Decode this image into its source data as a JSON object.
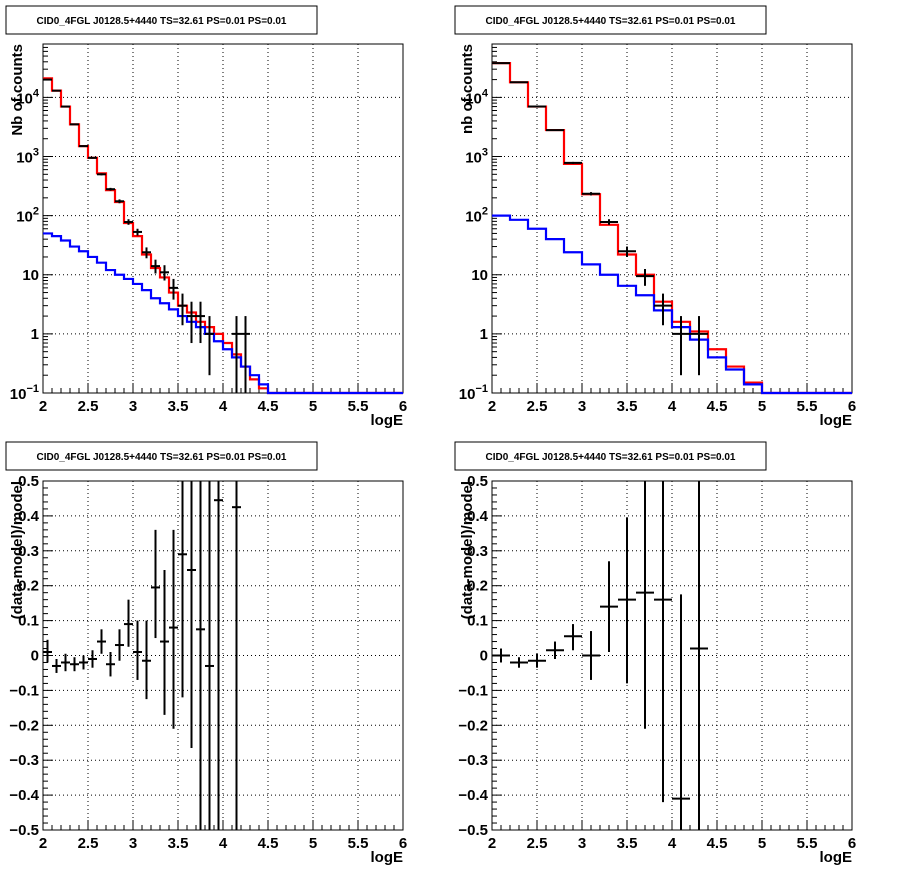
{
  "chart_data": [
    {
      "type": "line",
      "title": "CID0_4FGL J0128.5+4440 TS=32.61 PS=0.01 PS=0.01",
      "xlabel": "logE",
      "ylabel": "Nb of counts",
      "xlim": [
        2,
        6
      ],
      "ylim": [
        0.1,
        80000
      ],
      "yscale": "log",
      "grid": true,
      "xticks": [
        "2",
        "2.5",
        "3",
        "3.5",
        "4",
        "4.5",
        "5",
        "5.5",
        "6"
      ],
      "yticks": [
        {
          "v": 0.1,
          "base": "10",
          "exp": "−1"
        },
        {
          "v": 1,
          "text": "1"
        },
        {
          "v": 10,
          "text": "10"
        },
        {
          "v": 100,
          "base": "10",
          "exp": "2"
        },
        {
          "v": 1000,
          "base": "10",
          "exp": "3"
        },
        {
          "v": 10000,
          "base": "10",
          "exp": "4"
        }
      ],
      "bin_edges": [
        2.0,
        2.1,
        2.2,
        2.3,
        2.4,
        2.5,
        2.6,
        2.7,
        2.8,
        2.9,
        3.0,
        3.1,
        3.2,
        3.3,
        3.4,
        3.5,
        3.6,
        3.7,
        3.8,
        3.9,
        4.0,
        4.1,
        4.2,
        4.3,
        4.4,
        4.5,
        4.6,
        4.7,
        4.8,
        4.9,
        5.0,
        5.1,
        5.2,
        5.3,
        5.4,
        5.5,
        5.6,
        5.7,
        5.8,
        5.9,
        6.0
      ],
      "series": [
        {
          "color": "#ff0000",
          "values": [
            21000,
            13000,
            7000,
            3500,
            1500,
            950,
            520,
            270,
            170,
            75,
            45,
            22,
            13,
            9,
            5,
            3,
            2.3,
            1.6,
            1.3,
            1,
            0.7,
            0.45,
            0.28,
            0.17,
            0.12,
            0.1,
            0.1,
            0.1,
            0.1,
            0.1,
            0.1,
            0.1,
            0.1,
            0.1,
            0.1,
            0.1,
            0.1,
            0.1,
            0.1,
            0.1
          ]
        },
        {
          "color": "#0000ff",
          "values": [
            50,
            45,
            38,
            30,
            25,
            20,
            16,
            12,
            10,
            8.5,
            7,
            5.5,
            4,
            3.3,
            2.6,
            2,
            1.6,
            1.3,
            1,
            0.75,
            0.55,
            0.4,
            0.28,
            0.2,
            0.14,
            0.1,
            0.1,
            0.1,
            0.1,
            0.1,
            0.1,
            0.1,
            0.1,
            0.1,
            0.1,
            0.1,
            0.1,
            0.1,
            0.1,
            0.1
          ]
        }
      ],
      "data_points": [
        {
          "x": 2.05,
          "xerr": 0.05,
          "y": 20000,
          "lo": 19800,
          "hi": 20200
        },
        {
          "x": 2.15,
          "xerr": 0.05,
          "y": 13000,
          "lo": 12850,
          "hi": 13150
        },
        {
          "x": 2.25,
          "xerr": 0.05,
          "y": 7000,
          "lo": 6900,
          "hi": 7100
        },
        {
          "x": 2.35,
          "xerr": 0.05,
          "y": 3500,
          "lo": 3440,
          "hi": 3560
        },
        {
          "x": 2.45,
          "xerr": 0.05,
          "y": 1500,
          "lo": 1460,
          "hi": 1540
        },
        {
          "x": 2.55,
          "xerr": 0.05,
          "y": 950,
          "lo": 920,
          "hi": 980
        },
        {
          "x": 2.65,
          "xerr": 0.05,
          "y": 500,
          "lo": 480,
          "hi": 520
        },
        {
          "x": 2.75,
          "xerr": 0.05,
          "y": 280,
          "lo": 265,
          "hi": 295
        },
        {
          "x": 2.85,
          "xerr": 0.05,
          "y": 175,
          "lo": 162,
          "hi": 188
        },
        {
          "x": 2.95,
          "xerr": 0.05,
          "y": 78,
          "lo": 70,
          "hi": 87
        },
        {
          "x": 3.05,
          "xerr": 0.05,
          "y": 53,
          "lo": 46,
          "hi": 60
        },
        {
          "x": 3.15,
          "xerr": 0.05,
          "y": 24,
          "lo": 19,
          "hi": 29
        },
        {
          "x": 3.25,
          "xerr": 0.05,
          "y": 14,
          "lo": 10.5,
          "hi": 18
        },
        {
          "x": 3.35,
          "xerr": 0.05,
          "y": 11,
          "lo": 8,
          "hi": 14.5
        },
        {
          "x": 3.45,
          "xerr": 0.05,
          "y": 6,
          "lo": 3.8,
          "hi": 8.5
        },
        {
          "x": 3.55,
          "xerr": 0.05,
          "y": 3,
          "lo": 1.4,
          "hi": 4.8
        },
        {
          "x": 3.65,
          "xerr": 0.05,
          "y": 2,
          "lo": 0.7,
          "hi": 3.5
        },
        {
          "x": 3.75,
          "xerr": 0.05,
          "y": 2,
          "lo": 0.7,
          "hi": 3.5
        },
        {
          "x": 3.85,
          "xerr": 0.05,
          "y": 1,
          "lo": 0.2,
          "hi": 2
        },
        {
          "x": 4.15,
          "xerr": 0.05,
          "y": 1,
          "lo": 0.1,
          "hi": 2
        },
        {
          "x": 4.25,
          "xerr": 0.05,
          "y": 1,
          "lo": 0.1,
          "hi": 2
        }
      ]
    },
    {
      "type": "line",
      "title": "CID0_4FGL J0128.5+4440 TS=32.61 PS=0.01 PS=0.01",
      "xlabel": "logE",
      "ylabel": "nb of counts",
      "xlim": [
        2,
        6
      ],
      "ylim": [
        0.1,
        80000
      ],
      "yscale": "log",
      "grid": true,
      "xticks": [
        "2",
        "2.5",
        "3",
        "3.5",
        "4",
        "4.5",
        "5",
        "5.5",
        "6"
      ],
      "yticks": [
        {
          "v": 0.1,
          "base": "10",
          "exp": "−1"
        },
        {
          "v": 1,
          "text": "1"
        },
        {
          "v": 10,
          "text": "10"
        },
        {
          "v": 100,
          "base": "10",
          "exp": "2"
        },
        {
          "v": 1000,
          "base": "10",
          "exp": "3"
        },
        {
          "v": 10000,
          "base": "10",
          "exp": "4"
        }
      ],
      "bin_edges": [
        2.0,
        2.2,
        2.4,
        2.6,
        2.8,
        3.0,
        3.2,
        3.4,
        3.6,
        3.8,
        4.0,
        4.2,
        4.4,
        4.6,
        4.8,
        5.0,
        5.2,
        5.4,
        5.6,
        5.8,
        6.0
      ],
      "series": [
        {
          "color": "#ff0000",
          "values": [
            38000,
            18000,
            7000,
            2800,
            750,
            230,
            70,
            22,
            10,
            3.5,
            1.6,
            1.1,
            0.55,
            0.28,
            0.15,
            0.1,
            0.1,
            0.1,
            0.1,
            0.1
          ]
        },
        {
          "color": "#0000ff",
          "values": [
            100,
            85,
            60,
            40,
            24,
            15,
            10,
            6.5,
            4.5,
            2.5,
            1.3,
            0.8,
            0.4,
            0.25,
            0.14,
            0.1,
            0.1,
            0.1,
            0.1,
            0.1
          ]
        }
      ],
      "data_points": [
        {
          "x": 2.1,
          "xerr": 0.1,
          "y": 38000,
          "lo": 37700,
          "hi": 38300
        },
        {
          "x": 2.3,
          "xerr": 0.1,
          "y": 18000,
          "lo": 17800,
          "hi": 18200
        },
        {
          "x": 2.5,
          "xerr": 0.1,
          "y": 7000,
          "lo": 6900,
          "hi": 7100
        },
        {
          "x": 2.7,
          "xerr": 0.1,
          "y": 2800,
          "lo": 2740,
          "hi": 2860
        },
        {
          "x": 2.9,
          "xerr": 0.1,
          "y": 780,
          "lo": 750,
          "hi": 810
        },
        {
          "x": 3.1,
          "xerr": 0.1,
          "y": 235,
          "lo": 220,
          "hi": 250
        },
        {
          "x": 3.3,
          "xerr": 0.1,
          "y": 78,
          "lo": 70,
          "hi": 87
        },
        {
          "x": 3.5,
          "xerr": 0.1,
          "y": 25,
          "lo": 20,
          "hi": 30
        },
        {
          "x": 3.7,
          "xerr": 0.1,
          "y": 9.5,
          "lo": 6.5,
          "hi": 12.5
        },
        {
          "x": 3.9,
          "xerr": 0.1,
          "y": 3,
          "lo": 1.4,
          "hi": 4.8
        },
        {
          "x": 4.1,
          "xerr": 0.1,
          "y": 1,
          "lo": 0.2,
          "hi": 2
        },
        {
          "x": 4.3,
          "xerr": 0.1,
          "y": 1,
          "lo": 0.2,
          "hi": 2
        }
      ]
    },
    {
      "type": "scatter",
      "title": "CID0_4FGL J0128.5+4440 TS=32.61 PS=0.01 PS=0.01",
      "xlabel": "logE",
      "ylabel": "(data-model)/model",
      "xlim": [
        2,
        6
      ],
      "ylim": [
        -0.5,
        0.5
      ],
      "yscale": "linear",
      "grid": true,
      "xticks": [
        "2",
        "2.5",
        "3",
        "3.5",
        "4",
        "4.5",
        "5",
        "5.5",
        "6"
      ],
      "yticks": [
        {
          "v": -0.5,
          "text": "−0.5"
        },
        {
          "v": -0.4,
          "text": "−0.4"
        },
        {
          "v": -0.3,
          "text": "−0.3"
        },
        {
          "v": -0.2,
          "text": "−0.2"
        },
        {
          "v": -0.1,
          "text": "−0.1"
        },
        {
          "v": 0,
          "text": "0"
        },
        {
          "v": 0.1,
          "text": "0.1"
        },
        {
          "v": 0.2,
          "text": "0.2"
        },
        {
          "v": 0.3,
          "text": "0.3"
        },
        {
          "v": 0.4,
          "text": "0.4"
        },
        {
          "v": 0.5,
          "text": "0.5"
        }
      ],
      "data_points": [
        {
          "x": 2.05,
          "xerr": 0.05,
          "y": 0.01,
          "lo": -0.02,
          "hi": 0.045
        },
        {
          "x": 2.15,
          "xerr": 0.05,
          "y": -0.03,
          "lo": -0.05,
          "hi": -0.01
        },
        {
          "x": 2.25,
          "xerr": 0.05,
          "y": -0.02,
          "lo": -0.045,
          "hi": 0.005
        },
        {
          "x": 2.35,
          "xerr": 0.05,
          "y": -0.025,
          "lo": -0.045,
          "hi": -0.005
        },
        {
          "x": 2.45,
          "xerr": 0.05,
          "y": -0.02,
          "lo": -0.04,
          "hi": 0.0
        },
        {
          "x": 2.55,
          "xerr": 0.05,
          "y": -0.01,
          "lo": -0.035,
          "hi": 0.015
        },
        {
          "x": 2.65,
          "xerr": 0.05,
          "y": 0.04,
          "lo": 0.005,
          "hi": 0.075
        },
        {
          "x": 2.75,
          "xerr": 0.05,
          "y": -0.025,
          "lo": -0.06,
          "hi": 0.01
        },
        {
          "x": 2.85,
          "xerr": 0.05,
          "y": 0.03,
          "lo": -0.015,
          "hi": 0.075
        },
        {
          "x": 2.95,
          "xerr": 0.05,
          "y": 0.09,
          "lo": 0.025,
          "hi": 0.16
        },
        {
          "x": 3.05,
          "xerr": 0.05,
          "y": 0.01,
          "lo": -0.07,
          "hi": 0.1
        },
        {
          "x": 3.15,
          "xerr": 0.05,
          "y": -0.015,
          "lo": -0.125,
          "hi": 0.1
        },
        {
          "x": 3.25,
          "xerr": 0.05,
          "y": 0.195,
          "lo": 0.05,
          "hi": 0.36
        },
        {
          "x": 3.35,
          "xerr": 0.05,
          "y": 0.04,
          "lo": -0.17,
          "hi": 0.245
        },
        {
          "x": 3.45,
          "xerr": 0.05,
          "y": 0.08,
          "lo": -0.21,
          "hi": 0.36
        },
        {
          "x": 3.55,
          "xerr": 0.05,
          "y": 0.29,
          "lo": -0.12,
          "hi": 0.5
        },
        {
          "x": 3.65,
          "xerr": 0.05,
          "y": 0.245,
          "lo": -0.265,
          "hi": 0.5
        },
        {
          "x": 3.75,
          "xerr": 0.05,
          "y": 0.075,
          "lo": -0.5,
          "hi": 0.5
        },
        {
          "x": 3.85,
          "xerr": 0.05,
          "y": -0.03,
          "lo": -0.5,
          "hi": 0.5
        },
        {
          "x": 3.95,
          "xerr": 0.05,
          "y": 0.445,
          "lo": -0.5,
          "hi": 0.5
        },
        {
          "x": 4.15,
          "xerr": 0.05,
          "y": 0.425,
          "lo": -0.5,
          "hi": 0.5
        }
      ]
    },
    {
      "type": "scatter",
      "title": "CID0_4FGL J0128.5+4440 TS=32.61 PS=0.01 PS=0.01",
      "xlabel": "logE",
      "ylabel": "(data-model)/model",
      "xlim": [
        2,
        6
      ],
      "ylim": [
        -0.5,
        0.5
      ],
      "yscale": "linear",
      "grid": true,
      "xticks": [
        "2",
        "2.5",
        "3",
        "3.5",
        "4",
        "4.5",
        "5",
        "5.5",
        "6"
      ],
      "yticks": [
        {
          "v": -0.5,
          "text": "−0.5"
        },
        {
          "v": -0.4,
          "text": "−0.4"
        },
        {
          "v": -0.3,
          "text": "−0.3"
        },
        {
          "v": -0.2,
          "text": "−0.2"
        },
        {
          "v": -0.1,
          "text": "−0.1"
        },
        {
          "v": 0,
          "text": "0"
        },
        {
          "v": 0.1,
          "text": "0.1"
        },
        {
          "v": 0.2,
          "text": "0.2"
        },
        {
          "v": 0.3,
          "text": "0.3"
        },
        {
          "v": 0.4,
          "text": "0.4"
        },
        {
          "v": 0.5,
          "text": "0.5"
        }
      ],
      "data_points": [
        {
          "x": 2.1,
          "xerr": 0.1,
          "y": 0.0,
          "lo": -0.02,
          "hi": 0.02
        },
        {
          "x": 2.3,
          "xerr": 0.1,
          "y": -0.02,
          "lo": -0.035,
          "hi": -0.005
        },
        {
          "x": 2.5,
          "xerr": 0.1,
          "y": -0.015,
          "lo": -0.035,
          "hi": 0.005
        },
        {
          "x": 2.7,
          "xerr": 0.1,
          "y": 0.015,
          "lo": -0.01,
          "hi": 0.04
        },
        {
          "x": 2.9,
          "xerr": 0.1,
          "y": 0.055,
          "lo": 0.015,
          "hi": 0.09
        },
        {
          "x": 3.1,
          "xerr": 0.1,
          "y": 0.0,
          "lo": -0.07,
          "hi": 0.07
        },
        {
          "x": 3.3,
          "xerr": 0.1,
          "y": 0.14,
          "lo": 0.01,
          "hi": 0.27
        },
        {
          "x": 3.5,
          "xerr": 0.1,
          "y": 0.16,
          "lo": -0.08,
          "hi": 0.395
        },
        {
          "x": 3.7,
          "xerr": 0.1,
          "y": 0.18,
          "lo": -0.21,
          "hi": 0.5
        },
        {
          "x": 3.9,
          "xerr": 0.1,
          "y": 0.16,
          "lo": -0.42,
          "hi": 0.5
        },
        {
          "x": 4.1,
          "xerr": 0.1,
          "y": -0.41,
          "lo": -0.5,
          "hi": 0.175
        },
        {
          "x": 4.3,
          "xerr": 0.1,
          "y": 0.02,
          "lo": -0.5,
          "hi": 0.5
        }
      ]
    }
  ]
}
